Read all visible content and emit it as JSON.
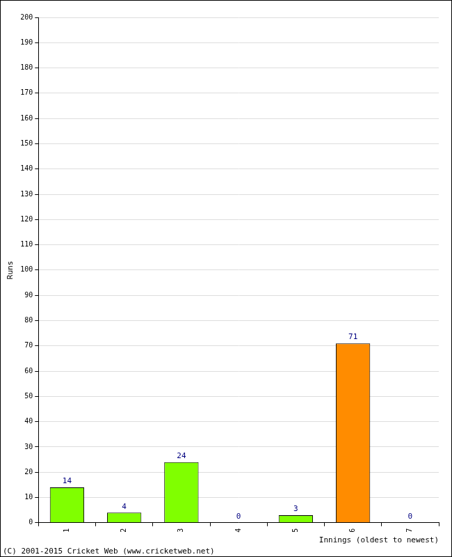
{
  "chart_data": {
    "type": "bar",
    "categories": [
      "1",
      "2",
      "3",
      "4",
      "5",
      "6",
      "7"
    ],
    "values": [
      14,
      4,
      24,
      0,
      3,
      71,
      0
    ],
    "colors": [
      "#80ff00",
      "#80ff00",
      "#80ff00",
      "#80ff00",
      "#80ff00",
      "#ff8c00",
      "#80ff00"
    ],
    "xlabel": "Innings (oldest to newest)",
    "ylabel": "Runs",
    "annotations": [
      "(C) 2001-2015 Cricket Web (www.cricketweb.net)"
    ],
    "ylim": [
      0,
      200
    ],
    "yticks": [
      0,
      10,
      20,
      30,
      40,
      50,
      60,
      70,
      80,
      90,
      100,
      110,
      120,
      130,
      140,
      150,
      160,
      170,
      180,
      190,
      200
    ],
    "grid": true,
    "data_labels": true
  }
}
